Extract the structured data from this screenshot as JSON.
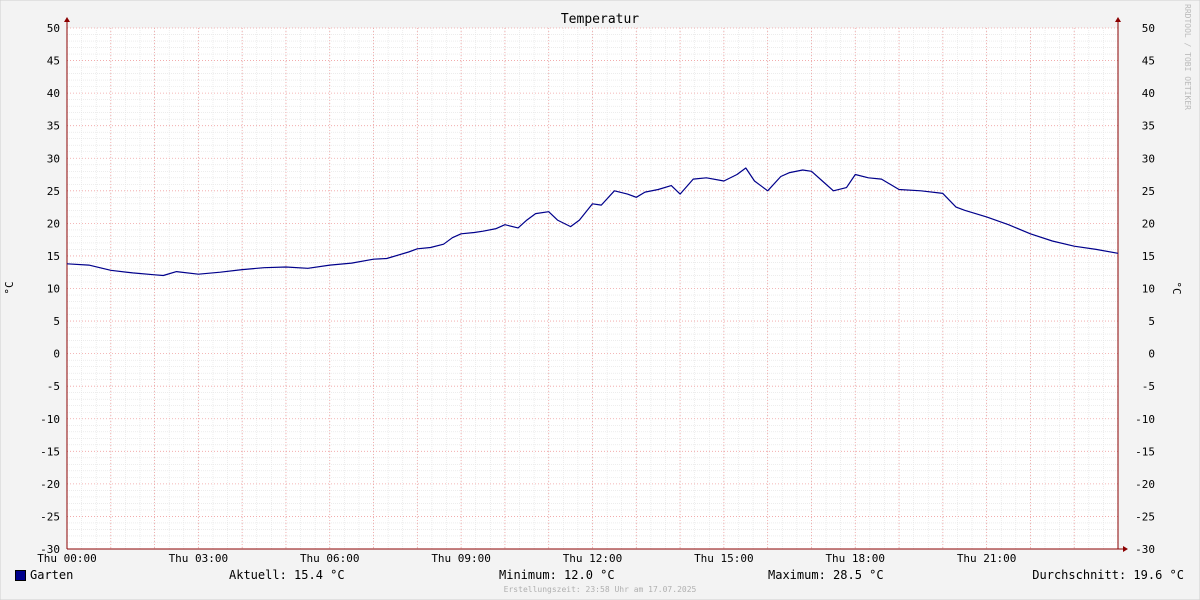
{
  "chart_data": {
    "type": "line",
    "title": "Temperatur",
    "ylabel": "°C",
    "ylim": [
      -30,
      50
    ],
    "y_ticks": [
      50,
      45,
      40,
      35,
      30,
      25,
      20,
      15,
      10,
      5,
      0,
      -5,
      -10,
      -15,
      -20,
      -25,
      -30
    ],
    "x_range_hours": [
      0,
      24
    ],
    "x_ticks": [
      {
        "hour": 0,
        "label": "Thu 00:00"
      },
      {
        "hour": 3,
        "label": "Thu 03:00"
      },
      {
        "hour": 6,
        "label": "Thu 06:00"
      },
      {
        "hour": 9,
        "label": "Thu 09:00"
      },
      {
        "hour": 12,
        "label": "Thu 12:00"
      },
      {
        "hour": 15,
        "label": "Thu 15:00"
      },
      {
        "hour": 18,
        "label": "Thu 18:00"
      },
      {
        "hour": 21,
        "label": "Thu 21:00"
      }
    ],
    "grid": true,
    "series": [
      {
        "name": "Garten",
        "color": "#00008b",
        "x": [
          0,
          0.5,
          1,
          1.5,
          2,
          2.2,
          2.5,
          3,
          3.5,
          4,
          4.5,
          5,
          5.5,
          6,
          6.5,
          7,
          7.3,
          7.8,
          8,
          8.3,
          8.6,
          8.8,
          9,
          9.3,
          9.5,
          9.8,
          10,
          10.3,
          10.5,
          10.7,
          11,
          11.2,
          11.5,
          11.7,
          12,
          12.2,
          12.5,
          12.8,
          13,
          13.2,
          13.5,
          13.8,
          14,
          14.3,
          14.6,
          15,
          15.3,
          15.5,
          15.7,
          16,
          16.3,
          16.5,
          16.8,
          17,
          17.3,
          17.5,
          17.8,
          18,
          18.3,
          18.6,
          19,
          19.5,
          20,
          20.3,
          20.5,
          21,
          21.5,
          22,
          22.5,
          23,
          23.5,
          24
        ],
        "y": [
          13.8,
          13.6,
          12.8,
          12.4,
          12.1,
          12.0,
          12.6,
          12.2,
          12.5,
          12.9,
          13.2,
          13.3,
          13.1,
          13.6,
          13.9,
          14.5,
          14.6,
          15.6,
          16.1,
          16.3,
          16.8,
          17.8,
          18.4,
          18.6,
          18.8,
          19.2,
          19.8,
          19.3,
          20.5,
          21.5,
          21.8,
          20.5,
          19.5,
          20.5,
          23.0,
          22.8,
          25.0,
          24.5,
          24.0,
          24.8,
          25.2,
          25.8,
          24.5,
          26.8,
          27.0,
          26.5,
          27.5,
          28.5,
          26.5,
          25.0,
          27.2,
          27.8,
          28.2,
          28.0,
          26.2,
          25.0,
          25.5,
          27.5,
          27.0,
          26.8,
          25.2,
          25.0,
          24.6,
          22.5,
          22.0,
          21.0,
          19.8,
          18.4,
          17.3,
          16.5,
          16.0,
          15.4
        ]
      }
    ],
    "legend": {
      "series_label": "Garten",
      "current": "Aktuell: 15.4 °C",
      "minimum": "Minimum: 12.0 °C",
      "maximum": "Maximum: 28.5 °C",
      "average": "Durchschnitt: 19.6 °C"
    },
    "footer": "Erstellungszeit: 23:58 Uhr am 17.07.2025",
    "watermark": "RRDTOOL / TOBI OETIKER"
  }
}
